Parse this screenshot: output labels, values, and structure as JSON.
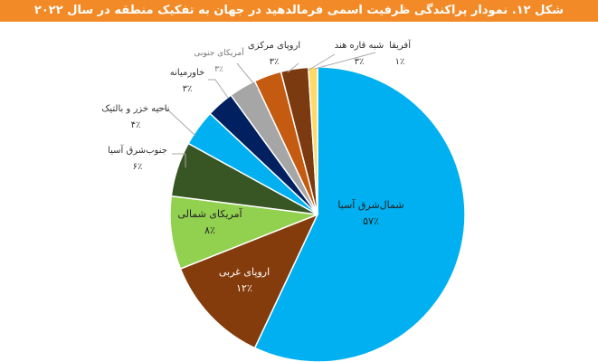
{
  "title": "شکل ۱۲. نمودار پراکندگی ظرفیت اسمی فرمالدهید در جهان به تفکیک منطقه در سال ۲۰۲۲",
  "chart_data": {
    "type": "pie",
    "title": "شکل ۱۲. نمودار پراکندگی ظرفیت اسمی فرمالدهید در جهان به تفکیک منطقه در سال ۲۰۲۲",
    "start": "top",
    "direction": "clockwise",
    "slices": [
      {
        "label": "شمال‌شرق آسیا",
        "value": 57,
        "text": "۵۷٪",
        "color": "#00b0f0"
      },
      {
        "label": "اروپای غربی",
        "value": 12,
        "text": "۱۲٪",
        "color": "#843c0c"
      },
      {
        "label": "آمریکای شمالی",
        "value": 8,
        "text": "۸٪",
        "color": "#92d050"
      },
      {
        "label": "جنوب‌شرق آسیا",
        "value": 6,
        "text": "۶٪",
        "color": "#375623"
      },
      {
        "label": "ناحیه خزر و بالتیک",
        "value": 4,
        "text": "۴٪",
        "color": "#00b0f0"
      },
      {
        "label": "خاورمیانه",
        "value": 3,
        "text": "۳٪",
        "color": "#002060"
      },
      {
        "label": "آمریکای جنوبی",
        "value": 3,
        "text": "۳٪",
        "color": "#a6a6a6"
      },
      {
        "label": "اروپای مرکزی",
        "value": 3,
        "text": "۳٪",
        "color": "#c55a11"
      },
      {
        "label": "شبه قاره هند",
        "value": 3,
        "text": "۳٪",
        "color": "#7b3a10"
      },
      {
        "label": "آفریقا",
        "value": 1,
        "text": "۱٪",
        "color": "#ffd966"
      }
    ]
  }
}
